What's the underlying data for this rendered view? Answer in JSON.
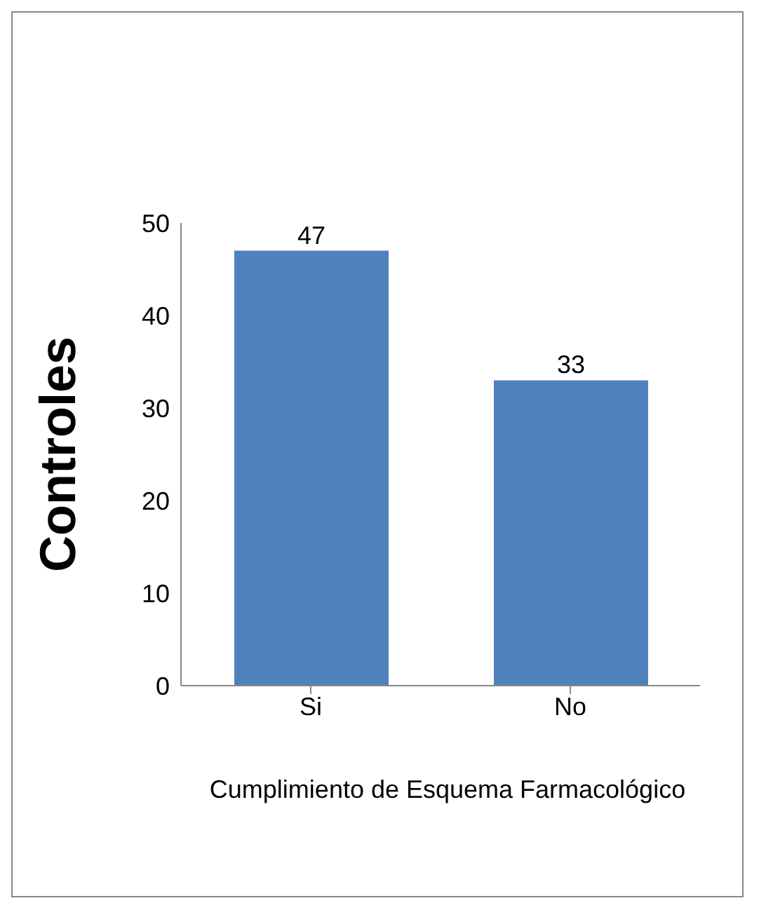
{
  "chart_data": {
    "type": "bar",
    "categories": [
      "Si",
      "No"
    ],
    "values": [
      47,
      33
    ],
    "color": "#4f81bd",
    "ylim": [
      0,
      50
    ],
    "yticks": [
      0,
      10,
      20,
      30,
      40,
      50
    ],
    "ylabel": "Controles",
    "xlabel": "Cumplimiento de Esquema Farmacológico",
    "data_labels": true
  }
}
